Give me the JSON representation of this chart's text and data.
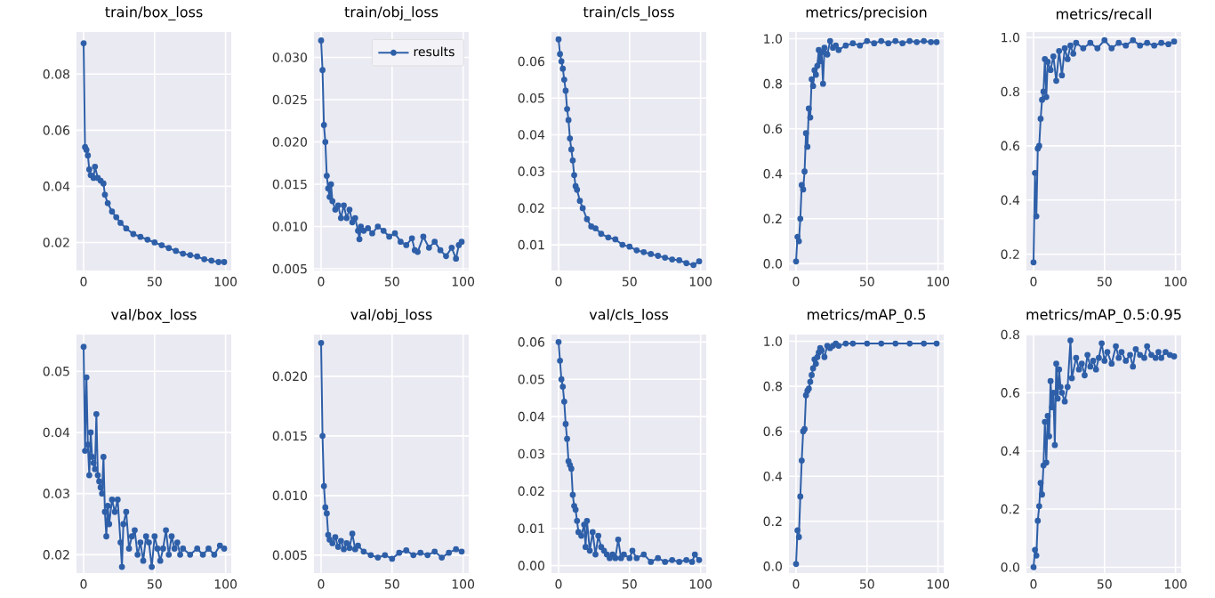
{
  "chart_data": [
    {
      "type": "line",
      "title": "train/box_loss",
      "xlim": [
        -5,
        104
      ],
      "ylim": [
        0.01,
        0.095
      ],
      "xticks": [
        0,
        50,
        100
      ],
      "yticks": [
        {
          "value": 0.02,
          "label": "0.02"
        },
        {
          "value": 0.04,
          "label": "0.04"
        },
        {
          "value": 0.06,
          "label": "0.06"
        },
        {
          "value": 0.08,
          "label": "0.08"
        }
      ],
      "grid": true,
      "marker": "circle",
      "x": [
        0,
        1,
        2,
        3,
        4,
        5,
        6,
        7,
        8,
        9,
        10,
        12,
        14,
        15,
        17,
        20,
        23,
        26,
        30,
        35,
        40,
        45,
        50,
        55,
        60,
        65,
        70,
        75,
        80,
        85,
        90,
        95,
        99
      ],
      "series": [
        {
          "color": "#2e5fa8",
          "values": [
            0.091,
            0.054,
            0.053,
            0.051,
            0.046,
            0.044,
            null,
            0.043,
            0.047,
            null,
            0.043,
            0.042,
            0.041,
            0.037,
            0.034,
            0.031,
            0.029,
            0.027,
            0.025,
            0.023,
            0.022,
            0.021,
            0.02,
            0.019,
            0.018,
            0.017,
            0.016,
            0.0155,
            0.015,
            0.014,
            0.0135,
            0.013,
            0.013
          ]
        }
      ]
    },
    {
      "type": "line",
      "title": "train/obj_loss",
      "xlim": [
        -5,
        104
      ],
      "ylim": [
        0.0048,
        0.033
      ],
      "xticks": [
        0,
        50,
        100
      ],
      "yticks": [
        0.005,
        {
          "value": 0.01,
          "label": "0.010"
        },
        0.015,
        {
          "value": 0.02,
          "label": "0.020"
        },
        0.025,
        {
          "value": 0.03,
          "label": "0.030"
        }
      ],
      "grid": true,
      "marker": "circle",
      "legend": "top right",
      "x": [
        0,
        1,
        2,
        3,
        4,
        5,
        6,
        7,
        8,
        10,
        12,
        14,
        16,
        18,
        20,
        22,
        24,
        26,
        27,
        28,
        30,
        33,
        36,
        40,
        44,
        48,
        52,
        56,
        60,
        64,
        66,
        68,
        72,
        76,
        80,
        84,
        88,
        92,
        95,
        97,
        99
      ],
      "series": [
        {
          "name": "results",
          "color": "#2e5fa8",
          "values": [
            0.032,
            0.0285,
            0.022,
            0.02,
            0.016,
            0.0145,
            0.0135,
            0.015,
            0.013,
            0.012,
            0.0125,
            0.011,
            0.0125,
            0.011,
            0.012,
            0.0105,
            0.011,
            0.0095,
            0.0085,
            0.01,
            0.0095,
            0.0098,
            0.0092,
            0.01,
            0.0095,
            0.0088,
            0.0092,
            0.0082,
            0.0078,
            0.0086,
            0.0072,
            0.007,
            0.0088,
            0.0075,
            0.0082,
            0.0072,
            0.0065,
            0.0075,
            0.0062,
            0.0078,
            0.0082
          ]
        }
      ]
    },
    {
      "type": "line",
      "title": "train/cls_loss",
      "xlim": [
        -5,
        104
      ],
      "ylim": [
        0.003,
        0.068
      ],
      "xticks": [
        0,
        50,
        100
      ],
      "yticks": [
        0.01,
        0.02,
        0.03,
        0.04,
        0.05,
        0.06
      ],
      "grid": true,
      "marker": "circle",
      "x": [
        0,
        1,
        2,
        3,
        4,
        5,
        6,
        7,
        8,
        9,
        10,
        11,
        12,
        13,
        15,
        17,
        20,
        23,
        26,
        30,
        35,
        40,
        45,
        50,
        55,
        60,
        65,
        70,
        75,
        80,
        85,
        90,
        95,
        99
      ],
      "series": [
        {
          "color": "#2e5fa8",
          "values": [
            0.066,
            0.062,
            0.06,
            0.058,
            0.055,
            0.052,
            0.047,
            0.044,
            0.039,
            0.036,
            0.033,
            0.029,
            0.026,
            0.025,
            0.022,
            0.02,
            0.017,
            0.015,
            0.0145,
            0.013,
            0.012,
            0.0115,
            0.01,
            0.0095,
            0.0085,
            0.008,
            0.0075,
            0.007,
            0.0065,
            0.006,
            0.0058,
            0.005,
            0.0045,
            0.0055
          ]
        }
      ]
    },
    {
      "type": "line",
      "title": "metrics/precision",
      "xlim": [
        -5,
        104
      ],
      "ylim": [
        -0.03,
        1.03
      ],
      "xticks": [
        0,
        50,
        100
      ],
      "yticks": [
        {
          "value": 0,
          "label": "0.0"
        },
        0.2,
        0.4,
        0.6,
        0.8,
        {
          "value": 1,
          "label": "1.0"
        }
      ],
      "grid": true,
      "marker": "circle",
      "x": [
        0,
        1,
        2,
        3,
        4,
        5,
        6,
        7,
        8,
        9,
        10,
        11,
        12,
        13,
        14,
        15,
        16,
        17,
        18,
        19,
        20,
        22,
        24,
        26,
        28,
        30,
        35,
        40,
        45,
        50,
        55,
        60,
        65,
        70,
        75,
        80,
        85,
        90,
        95,
        99
      ],
      "series": [
        {
          "color": "#2e5fa8",
          "values": [
            0.01,
            0.12,
            0.1,
            0.2,
            0.35,
            0.33,
            0.41,
            0.58,
            0.52,
            0.69,
            0.65,
            0.82,
            0.79,
            0.86,
            0.84,
            0.88,
            0.95,
            0.9,
            0.94,
            0.8,
            0.96,
            0.93,
            0.99,
            0.96,
            0.97,
            0.95,
            0.97,
            0.98,
            0.97,
            0.99,
            0.98,
            0.99,
            0.98,
            0.99,
            0.98,
            0.99,
            0.985,
            0.99,
            0.985,
            0.985
          ]
        }
      ]
    },
    {
      "type": "line",
      "title": "metrics/recall",
      "xlim": [
        -5,
        104
      ],
      "ylim": [
        0.14,
        1.02
      ],
      "xticks": [
        0,
        50,
        100
      ],
      "yticks": [
        0.2,
        0.4,
        0.6,
        0.8,
        {
          "value": 1,
          "label": "1.0"
        }
      ],
      "grid": true,
      "marker": "circle",
      "x": [
        0,
        1,
        2,
        3,
        4,
        5,
        6,
        7,
        8,
        9,
        10,
        12,
        14,
        16,
        18,
        20,
        22,
        24,
        26,
        28,
        30,
        35,
        40,
        45,
        50,
        55,
        60,
        65,
        70,
        75,
        80,
        85,
        90,
        95,
        99
      ],
      "series": [
        {
          "color": "#2e5fa8",
          "values": [
            0.17,
            0.5,
            0.34,
            0.59,
            0.6,
            0.7,
            0.77,
            0.8,
            0.92,
            0.78,
            0.91,
            0.88,
            0.93,
            0.84,
            0.95,
            0.86,
            0.96,
            0.92,
            0.97,
            0.94,
            0.98,
            0.96,
            0.98,
            0.96,
            0.99,
            0.96,
            0.98,
            0.97,
            0.99,
            0.97,
            0.98,
            0.97,
            0.98,
            0.975,
            0.985
          ]
        }
      ]
    },
    {
      "type": "line",
      "title": "val/box_loss",
      "xlim": [
        -5,
        104
      ],
      "ylim": [
        0.017,
        0.056
      ],
      "xticks": [
        0,
        50,
        100
      ],
      "yticks": [
        0.02,
        0.03,
        0.04,
        0.05
      ],
      "grid": true,
      "marker": "circle",
      "x": [
        0,
        1,
        2,
        3,
        4,
        5,
        6,
        7,
        8,
        9,
        10,
        11,
        12,
        13,
        14,
        15,
        16,
        17,
        18,
        20,
        22,
        24,
        26,
        27,
        28,
        30,
        32,
        34,
        36,
        38,
        40,
        42,
        44,
        46,
        48,
        50,
        52,
        54,
        56,
        58,
        60,
        62,
        64,
        66,
        68,
        70,
        75,
        80,
        84,
        88,
        92,
        96,
        99
      ],
      "series": [
        {
          "color": "#2e5fa8",
          "values": [
            0.054,
            0.037,
            0.049,
            0.038,
            0.033,
            0.04,
            0.036,
            0.035,
            0.034,
            0.043,
            0.033,
            0.032,
            0.031,
            0.03,
            0.036,
            0.027,
            0.023,
            0.028,
            0.025,
            0.029,
            0.027,
            0.029,
            0.022,
            0.018,
            0.025,
            0.027,
            0.021,
            0.023,
            0.024,
            0.02,
            0.022,
            0.019,
            0.023,
            0.022,
            0.018,
            0.023,
            0.021,
            0.019,
            0.021,
            0.024,
            0.02,
            0.023,
            0.021,
            0.022,
            0.02,
            0.021,
            0.02,
            0.021,
            0.02,
            0.021,
            0.02,
            0.0215,
            0.021
          ]
        }
      ]
    },
    {
      "type": "line",
      "title": "val/obj_loss",
      "xlim": [
        -5,
        104
      ],
      "ylim": [
        0.0035,
        0.0235
      ],
      "xticks": [
        0,
        50,
        100
      ],
      "yticks": [
        0.005,
        {
          "value": 0.01,
          "label": "0.010"
        },
        0.015,
        {
          "value": 0.02,
          "label": "0.020"
        }
      ],
      "grid": true,
      "marker": "circle",
      "x": [
        0,
        1,
        2,
        3,
        4,
        5,
        6,
        8,
        10,
        12,
        14,
        16,
        18,
        20,
        22,
        24,
        26,
        30,
        35,
        40,
        45,
        50,
        55,
        60,
        65,
        70,
        75,
        80,
        85,
        90,
        95,
        99
      ],
      "series": [
        {
          "color": "#2e5fa8",
          "values": [
            0.0228,
            0.015,
            0.0108,
            0.009,
            0.0085,
            0.0067,
            0.0063,
            0.006,
            0.0065,
            0.0057,
            0.0062,
            0.0055,
            0.006,
            0.0056,
            0.0068,
            0.0055,
            0.0058,
            0.0053,
            0.005,
            0.0048,
            0.005,
            0.0047,
            0.0052,
            0.0054,
            0.005,
            0.0052,
            0.005,
            0.0053,
            0.0048,
            0.0052,
            0.0055,
            0.0053
          ]
        }
      ]
    },
    {
      "type": "line",
      "title": "val/cls_loss",
      "xlim": [
        -5,
        104
      ],
      "ylim": [
        -0.002,
        0.062
      ],
      "xticks": [
        0,
        50,
        100
      ],
      "yticks": [
        {
          "value": 0,
          "label": "0.00"
        },
        0.01,
        0.02,
        0.03,
        0.04,
        0.05,
        0.06
      ],
      "grid": true,
      "marker": "circle",
      "x": [
        0,
        1,
        2,
        3,
        4,
        5,
        6,
        7,
        8,
        9,
        10,
        11,
        12,
        13,
        14,
        16,
        18,
        19,
        20,
        22,
        24,
        26,
        28,
        30,
        32,
        34,
        36,
        38,
        40,
        42,
        44,
        46,
        50,
        52,
        55,
        60,
        65,
        70,
        75,
        80,
        85,
        90,
        94,
        96,
        99
      ],
      "series": [
        {
          "color": "#2e5fa8",
          "values": [
            0.06,
            0.055,
            0.05,
            0.048,
            0.044,
            0.038,
            0.034,
            0.028,
            0.027,
            0.026,
            0.019,
            0.016,
            0.015,
            0.012,
            0.009,
            0.008,
            0.011,
            0.005,
            0.012,
            0.004,
            0.009,
            0.003,
            0.008,
            0.005,
            0.004,
            0.003,
            0.002,
            0.003,
            0.002,
            0.007,
            0.002,
            0.003,
            0.002,
            0.004,
            0.002,
            0.003,
            0.001,
            0.002,
            0.001,
            0.0015,
            0.001,
            0.0015,
            0.001,
            0.003,
            0.0015
          ]
        }
      ]
    },
    {
      "type": "line",
      "title": "metrics/mAP_0.5",
      "xlim": [
        -5,
        104
      ],
      "ylim": [
        -0.03,
        1.03
      ],
      "xticks": [
        0,
        50,
        100
      ],
      "yticks": [
        {
          "value": 0,
          "label": "0.0"
        },
        0.2,
        0.4,
        0.6,
        0.8,
        {
          "value": 1,
          "label": "1.0"
        }
      ],
      "grid": true,
      "marker": "circle",
      "x": [
        0,
        1,
        2,
        3,
        4,
        5,
        6,
        7,
        8,
        9,
        10,
        11,
        12,
        13,
        14,
        15,
        16,
        17,
        18,
        20,
        22,
        24,
        26,
        28,
        30,
        35,
        40,
        50,
        60,
        70,
        80,
        90,
        99
      ],
      "series": [
        {
          "color": "#2e5fa8",
          "values": [
            0.01,
            0.16,
            0.13,
            0.31,
            0.47,
            0.6,
            0.61,
            0.76,
            0.78,
            0.79,
            0.82,
            0.85,
            0.88,
            0.92,
            0.9,
            0.93,
            0.95,
            0.97,
            0.96,
            0.93,
            0.98,
            0.97,
            0.98,
            0.99,
            0.98,
            0.99,
            0.99,
            0.99,
            0.99,
            0.99,
            0.99,
            0.99,
            0.99
          ]
        }
      ]
    },
    {
      "type": "line",
      "title": "metrics/mAP_0.5:0.95",
      "xlim": [
        -5,
        104
      ],
      "ylim": [
        -0.02,
        0.8
      ],
      "xticks": [
        0,
        50,
        100
      ],
      "yticks": [
        {
          "value": 0,
          "label": "0.0"
        },
        0.2,
        0.4,
        0.6,
        0.8
      ],
      "grid": true,
      "marker": "circle",
      "x": [
        0,
        1,
        2,
        3,
        4,
        5,
        6,
        7,
        8,
        9,
        10,
        11,
        12,
        13,
        14,
        15,
        16,
        17,
        18,
        19,
        20,
        22,
        24,
        26,
        27,
        30,
        32,
        34,
        36,
        38,
        40,
        42,
        44,
        46,
        48,
        50,
        52,
        55,
        58,
        60,
        62,
        65,
        68,
        70,
        72,
        75,
        78,
        80,
        83,
        86,
        88,
        90,
        93,
        96,
        99
      ],
      "series": [
        {
          "color": "#2e5fa8",
          "values": [
            0.0,
            0.06,
            0.04,
            0.16,
            0.21,
            0.29,
            0.25,
            0.35,
            0.5,
            0.36,
            0.52,
            0.45,
            0.64,
            0.55,
            0.6,
            0.42,
            0.7,
            0.58,
            0.68,
            0.62,
            0.6,
            0.57,
            0.62,
            0.78,
            0.65,
            0.72,
            0.68,
            0.7,
            0.66,
            0.73,
            0.69,
            0.71,
            0.68,
            0.72,
            0.77,
            0.71,
            0.74,
            0.7,
            0.76,
            0.72,
            0.74,
            0.71,
            0.73,
            0.69,
            0.75,
            0.73,
            0.72,
            0.76,
            0.73,
            0.72,
            0.74,
            0.72,
            0.74,
            0.73,
            0.725
          ]
        }
      ]
    }
  ]
}
